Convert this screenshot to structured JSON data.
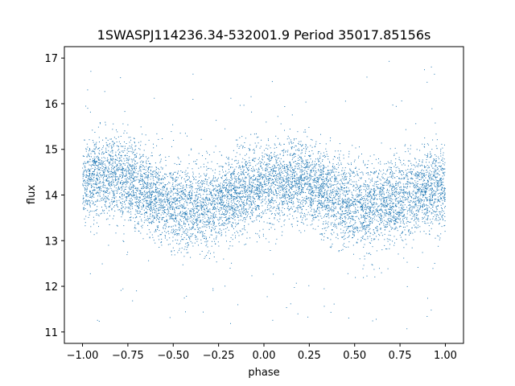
{
  "chart_data": {
    "type": "scatter",
    "title": "1SWASPJ114236.34-532001.9 Period 35017.85156s",
    "xlabel": "phase",
    "ylabel": "flux",
    "xlim": [
      -1.1,
      1.1
    ],
    "ylim": [
      10.75,
      17.25
    ],
    "x_ticks": [
      -1.0,
      -0.75,
      -0.5,
      -0.25,
      0.0,
      0.25,
      0.5,
      0.75,
      1.0
    ],
    "x_tick_labels": [
      "−1.00",
      "−0.75",
      "−0.50",
      "−0.25",
      "0.00",
      "0.25",
      "0.50",
      "0.75",
      "1.00"
    ],
    "y_ticks": [
      11,
      12,
      13,
      14,
      15,
      16,
      17
    ],
    "y_tick_labels": [
      "11",
      "12",
      "13",
      "14",
      "15",
      "16",
      "17"
    ],
    "grid": false,
    "legend": "none",
    "marker_color": "#1f77b4",
    "series": [
      {
        "phase": [
          -1.0,
          -0.9,
          -0.8,
          -0.7,
          -0.6,
          -0.5,
          -0.4,
          -0.3,
          -0.2,
          -0.1,
          0.0,
          0.1,
          0.2,
          0.3,
          0.4,
          0.5,
          0.6,
          0.7,
          0.8,
          0.9,
          1.0
        ],
        "flux_center": [
          14.25,
          14.35,
          14.4,
          14.2,
          13.95,
          13.75,
          13.7,
          13.8,
          13.95,
          14.1,
          14.25,
          14.3,
          14.3,
          14.2,
          13.95,
          13.75,
          13.7,
          13.8,
          13.95,
          14.1,
          14.25
        ],
        "flux_spread": 0.75,
        "flux_min": 11.05,
        "flux_max": 16.95
      }
    ]
  }
}
